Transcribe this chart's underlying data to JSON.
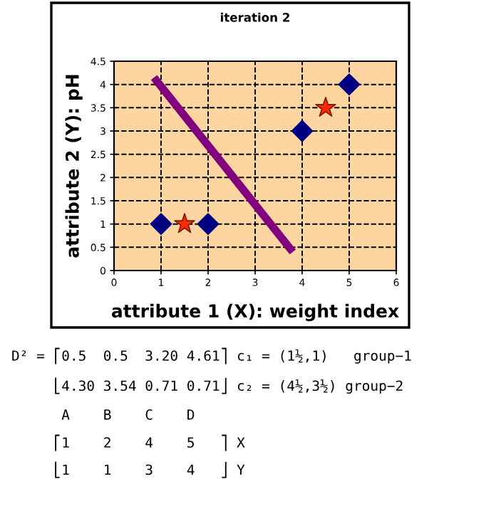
{
  "chart_data": {
    "type": "scatter",
    "title": "iteration 2",
    "xlabel": "attribute 1 (X): weight index",
    "ylabel": "attribute 2 (Y): pH",
    "series": [
      {
        "color": "#000080",
        "marker": "diamond",
        "x": [
          1,
          2,
          4,
          5
        ],
        "values": [
          1,
          1,
          3,
          4
        ]
      },
      {
        "color": "#ff2a00",
        "marker": "star",
        "x": [
          1.5,
          4.5
        ],
        "values": [
          1,
          3.5
        ]
      },
      {
        "type": "line",
        "color": "#800080",
        "marker": "none",
        "x": [
          0.85,
          3.8
        ],
        "values": [
          4.15,
          0.4
        ]
      }
    ],
    "xlim": [
      0,
      6
    ],
    "xticks": [
      0,
      1,
      2,
      3,
      4,
      5,
      6
    ],
    "ylim": [
      0,
      4.5
    ],
    "yticks": [
      0,
      0.5,
      1,
      1.5,
      2,
      2.5,
      3,
      3.5,
      4,
      4.5
    ],
    "grid": true,
    "annotations": [
      "D² = ⎡0.5  0.5  3.20 4.61⎤ c₁ = (1½,1)   group−1",
      "     ⎣4.30 3.54 0.71 0.71⎦ c₂ = (4½,3½) group−2",
      "      A    B    C    D",
      "     ⎡1    2    4    5   ⎤ X",
      "     ⎣1    1    3    4   ⎦ Y"
    ]
  }
}
